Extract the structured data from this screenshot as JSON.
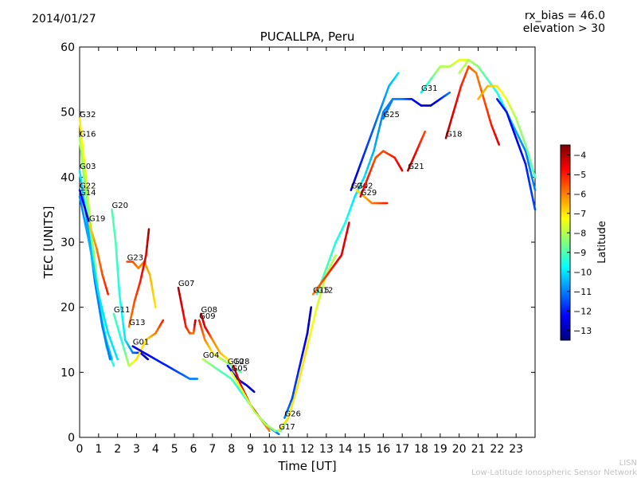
{
  "header": {
    "date": "2014/01/27",
    "rx_bias": "rx_bias = 46.0",
    "elevation": "elevation > 30"
  },
  "footer": {
    "line1": "LISN",
    "line2": "Low-Latitude Ionospheric Sensor Network"
  },
  "colorbar": {
    "label": "Latitude",
    "ticks": [
      -4,
      -5,
      -6,
      -7,
      -8,
      -9,
      -10,
      -11,
      -12,
      -13
    ],
    "range": [
      -13.5,
      -3.5
    ],
    "colormap": "jet"
  },
  "chart_data": {
    "type": "line",
    "title": "PUCALLPA, Peru",
    "xlabel": "Time [UT]",
    "ylabel": "TEC [UNITS]",
    "xlim": [
      0,
      24
    ],
    "ylim": [
      0,
      60
    ],
    "xticks": [
      0,
      1,
      2,
      3,
      4,
      5,
      6,
      7,
      8,
      9,
      10,
      11,
      12,
      13,
      14,
      15,
      16,
      17,
      18,
      19,
      20,
      21,
      22,
      23
    ],
    "yticks": [
      0,
      10,
      20,
      30,
      40,
      50,
      60
    ],
    "grid": false,
    "series": [
      {
        "name": "G32",
        "x": [
          0.0,
          0.3,
          0.6,
          1.0,
          1.4,
          1.8
        ],
        "y": [
          49,
          41,
          32,
          22,
          14,
          11
        ],
        "lat": [
          -7,
          -7.5,
          -8,
          -8.5,
          -9,
          -9.5
        ]
      },
      {
        "name": "G16",
        "x": [
          0.0,
          0.3,
          0.6,
          1.0,
          1.4,
          1.7
        ],
        "y": [
          46,
          38,
          30,
          21,
          15,
          12
        ],
        "lat": [
          -8,
          -8.5,
          -9,
          -9.5,
          -10,
          -10.5
        ]
      },
      {
        "name": "G03",
        "x": [
          0.0,
          0.4,
          0.8,
          1.2,
          1.6
        ],
        "y": [
          41,
          33,
          24,
          17,
          12
        ],
        "lat": [
          -10,
          -10.5,
          -11,
          -11,
          -11
        ]
      },
      {
        "name": "G22",
        "x": [
          0.0,
          0.3,
          0.6
        ],
        "y": [
          38,
          35,
          32
        ],
        "lat": [
          -12,
          -12.5,
          -13
        ]
      },
      {
        "name": "G14",
        "x": [
          0.0,
          0.5,
          1.0,
          1.5,
          2.0
        ],
        "y": [
          37,
          30,
          22,
          16,
          12
        ],
        "lat": [
          -11,
          -10.5,
          -10,
          -10,
          -10
        ]
      },
      {
        "name": "G19",
        "x": [
          0.5,
          0.9,
          1.2,
          1.5
        ],
        "y": [
          33,
          29,
          25,
          22
        ],
        "lat": [
          -7,
          -6,
          -5.5,
          -5
        ]
      },
      {
        "name": "G20",
        "x": [
          1.7,
          1.9,
          2.1,
          2.4,
          2.8,
          3.2,
          3.6
        ],
        "y": [
          35,
          30,
          22,
          15,
          13,
          13,
          12
        ],
        "lat": [
          -9,
          -9,
          -9.5,
          -10,
          -11,
          -12,
          -13
        ]
      },
      {
        "name": "G23",
        "x": [
          2.5,
          2.8,
          3.1,
          3.4,
          3.7,
          4.0
        ],
        "y": [
          27,
          27,
          26,
          27,
          25,
          20
        ],
        "lat": [
          -5.5,
          -5.5,
          -6,
          -6,
          -6.5,
          -7
        ]
      },
      {
        "name": "G13",
        "x": [
          2.6,
          2.9,
          3.2,
          3.5,
          3.65
        ],
        "y": [
          17,
          21,
          24,
          28,
          32
        ],
        "lat": [
          -6,
          -5.5,
          -5,
          -4.5,
          -4
        ]
      },
      {
        "name": "G11",
        "x": [
          1.8,
          2.2,
          2.6,
          3.0,
          3.5,
          4.0,
          4.4
        ],
        "y": [
          19,
          15,
          11,
          12,
          15,
          16,
          18
        ],
        "lat": [
          -9,
          -9.5,
          -8,
          -7,
          -7,
          -6,
          -5
        ]
      },
      {
        "name": "G01",
        "x": [
          2.8,
          3.4,
          4.0,
          4.6,
          5.2,
          5.8,
          6.2
        ],
        "y": [
          14,
          13,
          12,
          11,
          10,
          9,
          9
        ],
        "lat": [
          -12.5,
          -12.5,
          -12,
          -12,
          -11.5,
          -11,
          -11
        ]
      },
      {
        "name": "G07",
        "x": [
          5.2,
          5.4,
          5.6,
          5.8,
          6.0,
          6.1
        ],
        "y": [
          23,
          20,
          17,
          16,
          16,
          18
        ],
        "lat": [
          -4,
          -4.5,
          -5,
          -5.5,
          -6,
          -4
        ]
      },
      {
        "name": "G08",
        "x": [
          6.4,
          6.6,
          6.8,
          7.0,
          7.4,
          7.8,
          8.0
        ],
        "y": [
          19,
          17,
          16,
          15,
          13,
          12,
          11
        ],
        "lat": [
          -4,
          -4.5,
          -5,
          -6,
          -6.5,
          -7,
          -7.5
        ]
      },
      {
        "name": "G09",
        "x": [
          6.3,
          6.6,
          7.0,
          7.5,
          8.0,
          8.5
        ],
        "y": [
          18,
          15,
          13,
          12,
          11,
          10
        ],
        "lat": [
          -5,
          -6,
          -7,
          -8,
          -8.5,
          -9
        ]
      },
      {
        "name": "G04",
        "x": [
          6.5,
          7.0,
          7.5,
          8.0,
          8.5,
          9.0,
          9.5,
          10.0,
          10.5
        ],
        "y": [
          12,
          11,
          10,
          9,
          7,
          5,
          3,
          1.5,
          0.5
        ],
        "lat": [
          -8,
          -8.5,
          -9,
          -9,
          -9.5,
          -10,
          -10.5,
          -11,
          -11
        ]
      },
      {
        "name": "G10",
        "x": [
          7.8,
          8.3,
          8.8,
          9.2
        ],
        "y": [
          11,
          9,
          8,
          7
        ],
        "lat": [
          -12,
          -12.5,
          -12.5,
          -13
        ]
      },
      {
        "name": "G28",
        "x": [
          8.1,
          8.5,
          9.0,
          9.5,
          10.0
        ],
        "y": [
          11,
          8,
          5,
          3,
          1
        ],
        "lat": [
          -4,
          -4.5,
          -5,
          -5.5,
          -6
        ]
      },
      {
        "name": "G05",
        "x": [
          8.0,
          8.6,
          9.2,
          9.8,
          10.3,
          10.6,
          11.0
        ],
        "y": [
          10,
          7,
          4,
          2,
          1,
          1,
          3
        ],
        "lat": [
          -7.5,
          -7.5,
          -8,
          -8,
          -8.5,
          -9,
          -9
        ]
      },
      {
        "name": "G17",
        "x": [
          10.5,
          11.0,
          11.5,
          12.0,
          12.5,
          13.0,
          13.5
        ],
        "y": [
          1,
          3,
          8,
          14,
          20,
          25,
          28
        ],
        "lat": [
          -7,
          -7,
          -7,
          -7,
          -7.5,
          -8,
          -8
        ]
      },
      {
        "name": "G26",
        "x": [
          10.8,
          11.2,
          11.6,
          12.0,
          12.2
        ],
        "y": [
          3,
          6,
          11,
          16,
          20
        ],
        "lat": [
          -11,
          -11.5,
          -12,
          -12.5,
          -13
        ]
      },
      {
        "name": "G12",
        "x": [
          12.5,
          13.0,
          13.5,
          14.0,
          14.5,
          15.0,
          15.5,
          16.0,
          16.5
        ],
        "y": [
          22,
          26,
          30,
          33,
          37,
          40,
          44,
          50,
          52
        ],
        "lat": [
          -9,
          -9,
          -9.5,
          -9.5,
          -10,
          -10,
          -10.5,
          -11,
          -11
        ]
      },
      {
        "name": "G15",
        "x": [
          12.3,
          12.8,
          13.3,
          13.8,
          14.2
        ],
        "y": [
          22,
          24,
          26,
          28,
          33
        ],
        "lat": [
          -6,
          -5.5,
          -5,
          -4.5,
          -4.5
        ]
      },
      {
        "name": "G24",
        "x": [
          14.3,
          14.8,
          15.3,
          15.8,
          16.3,
          16.8
        ],
        "y": [
          38,
          42,
          46,
          50,
          54,
          56
        ],
        "lat": [
          -13,
          -12,
          -11.5,
          -11,
          -10.5,
          -10
        ]
      },
      {
        "name": "G02",
        "x": [
          14.6,
          15.0,
          15.4,
          15.8,
          16.2
        ],
        "y": [
          38,
          37,
          36,
          36,
          36
        ],
        "lat": [
          -7,
          -6.5,
          -6,
          -5.5,
          -5
        ]
      },
      {
        "name": "G29",
        "x": [
          14.8,
          15.2,
          15.6,
          16.0,
          16.6,
          17.0
        ],
        "y": [
          37,
          40,
          43,
          44,
          43,
          41
        ],
        "lat": [
          -4.5,
          -5,
          -5.5,
          -5.5,
          -5,
          -4.5
        ]
      },
      {
        "name": "G21",
        "x": [
          17.3,
          17.6,
          17.9,
          18.2
        ],
        "y": [
          41,
          43,
          45,
          47
        ],
        "lat": [
          -4,
          -4.5,
          -5,
          -5.5
        ]
      },
      {
        "name": "G25",
        "x": [
          16.0,
          16.5,
          17.0,
          17.5,
          18.0,
          18.5,
          19.0,
          19.5
        ],
        "y": [
          49,
          52,
          52,
          52,
          51,
          51,
          52,
          53
        ],
        "lat": [
          -11,
          -11,
          -11,
          -12,
          -12.5,
          -13,
          -12,
          -11
        ]
      },
      {
        "name": "G31",
        "x": [
          18.0,
          18.5,
          19.0,
          19.5,
          20.0,
          20.5,
          21.0
        ],
        "y": [
          53,
          55,
          57,
          57,
          58,
          58,
          57
        ],
        "lat": [
          -10,
          -9,
          -8,
          -8,
          -7.5,
          -7.5,
          -7
        ]
      },
      {
        "name": "G18",
        "x": [
          19.3,
          19.7,
          20.1,
          20.5,
          20.9,
          21.3,
          21.7,
          22.1
        ],
        "y": [
          46,
          50,
          54,
          57,
          56,
          52,
          48,
          45
        ],
        "lat": [
          -4,
          -4.5,
          -5,
          -5.5,
          -6,
          -5.5,
          -5,
          -4.5
        ]
      },
      {
        "name": "",
        "x": [
          20.0,
          20.5,
          21.0,
          21.5,
          22.0,
          22.5,
          23.0,
          23.5,
          24.0
        ],
        "y": [
          56,
          58,
          57,
          55,
          53,
          50,
          47,
          44,
          38
        ],
        "lat": [
          -8,
          -8,
          -8.5,
          -9,
          -9.5,
          -10,
          -10.5,
          -11,
          -11
        ]
      },
      {
        "name": "",
        "x": [
          21.0,
          21.5,
          22.0,
          22.5,
          23.0,
          23.5,
          24.0
        ],
        "y": [
          52,
          54,
          54,
          52,
          49,
          45,
          40
        ],
        "lat": [
          -6.5,
          -6.5,
          -7,
          -7.5,
          -8,
          -8.5,
          -9
        ]
      },
      {
        "name": "",
        "x": [
          22.0,
          22.5,
          23.0,
          23.5,
          24.0
        ],
        "y": [
          52,
          50,
          46,
          42,
          35
        ],
        "lat": [
          -12,
          -12,
          -12.5,
          -12,
          -11.5
        ]
      }
    ]
  }
}
